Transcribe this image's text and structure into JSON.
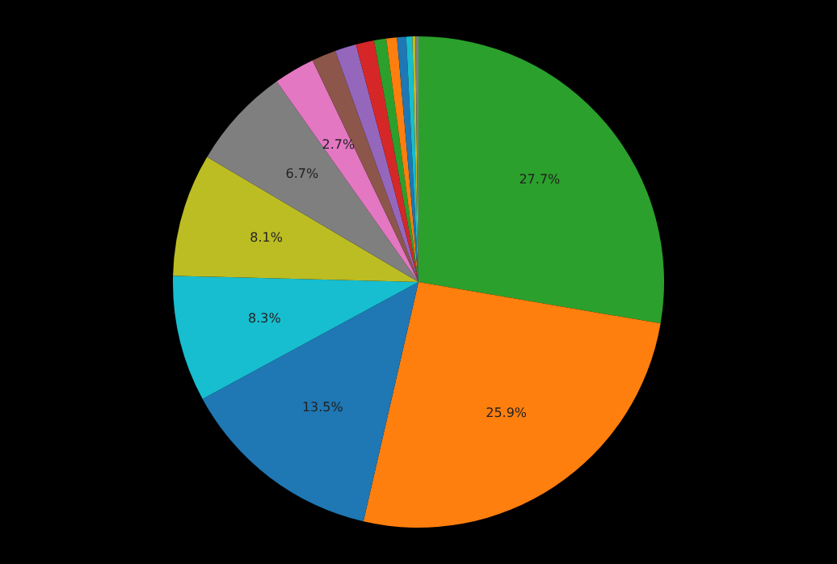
{
  "chart_data": {
    "type": "pie",
    "categories": [
      null,
      null,
      null,
      null,
      null,
      null,
      null,
      null,
      null,
      null,
      null,
      null,
      null,
      null,
      null,
      null
    ],
    "values": [
      27.7,
      25.9,
      13.5,
      8.3,
      8.1,
      6.7,
      2.7,
      1.6,
      1.4,
      1.2,
      0.8,
      0.7,
      0.6,
      0.4,
      0.2,
      0.2
    ],
    "colors": [
      "#2ca02c",
      "#ff7f0e",
      "#1f77b4",
      "#17becf",
      "#bcbd22",
      "#7f7f7f",
      "#e377c2",
      "#8c564b",
      "#9467bd",
      "#d62728",
      "#2ca02c",
      "#ff7f0e",
      "#1f77b4",
      "#17becf",
      "#bcbd22",
      "#7f7f7f"
    ],
    "value_labels": [
      "27.7%",
      "25.9%",
      "13.5%",
      "8.3%",
      "8.1%",
      "6.7%",
      "2.7%",
      null,
      null,
      null,
      null,
      null,
      null,
      null,
      null,
      null
    ]
  }
}
